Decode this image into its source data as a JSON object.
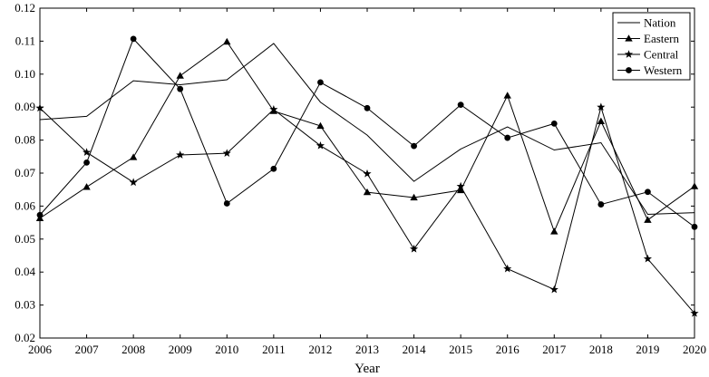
{
  "chart_data": {
    "type": "line",
    "xlabel": "Year",
    "ylabel": "",
    "x": [
      2006,
      2007,
      2008,
      2009,
      2010,
      2011,
      2012,
      2013,
      2014,
      2015,
      2016,
      2017,
      2018,
      2019,
      2020
    ],
    "xlim": [
      2006,
      2020
    ],
    "ylim": [
      0.02,
      0.12
    ],
    "yticks": [
      "0.02",
      "0.03",
      "0.04",
      "0.05",
      "0.06",
      "0.07",
      "0.08",
      "0.09",
      "0.10",
      "0.11",
      "0.12"
    ],
    "grid": false,
    "legend_position": "top-right",
    "series": [
      {
        "name": "Nation",
        "marker": "none",
        "values": [
          0.0862,
          0.0872,
          0.098,
          0.0968,
          0.0983,
          0.1093,
          0.0915,
          0.0815,
          0.0675,
          0.0773,
          0.084,
          0.077,
          0.0792,
          0.0575,
          0.058
        ]
      },
      {
        "name": "Eastern",
        "marker": "triangle",
        "values": [
          0.0563,
          0.0658,
          0.0748,
          0.0995,
          0.1098,
          0.0888,
          0.0843,
          0.0642,
          0.0626,
          0.0648,
          0.0935,
          0.0523,
          0.0857,
          0.0558,
          0.066
        ]
      },
      {
        "name": "Central",
        "marker": "star",
        "values": [
          0.0897,
          0.0763,
          0.0672,
          0.0755,
          0.076,
          0.0893,
          0.0783,
          0.0698,
          0.047,
          0.066,
          0.041,
          0.0347,
          0.09,
          0.044,
          0.0275
        ]
      },
      {
        "name": "Western",
        "marker": "circle",
        "values": [
          0.0573,
          0.0732,
          0.1107,
          0.0955,
          0.0608,
          0.0713,
          0.0975,
          0.0897,
          0.0782,
          0.0907,
          0.0807,
          0.085,
          0.0605,
          0.0643,
          0.0537
        ]
      }
    ]
  }
}
